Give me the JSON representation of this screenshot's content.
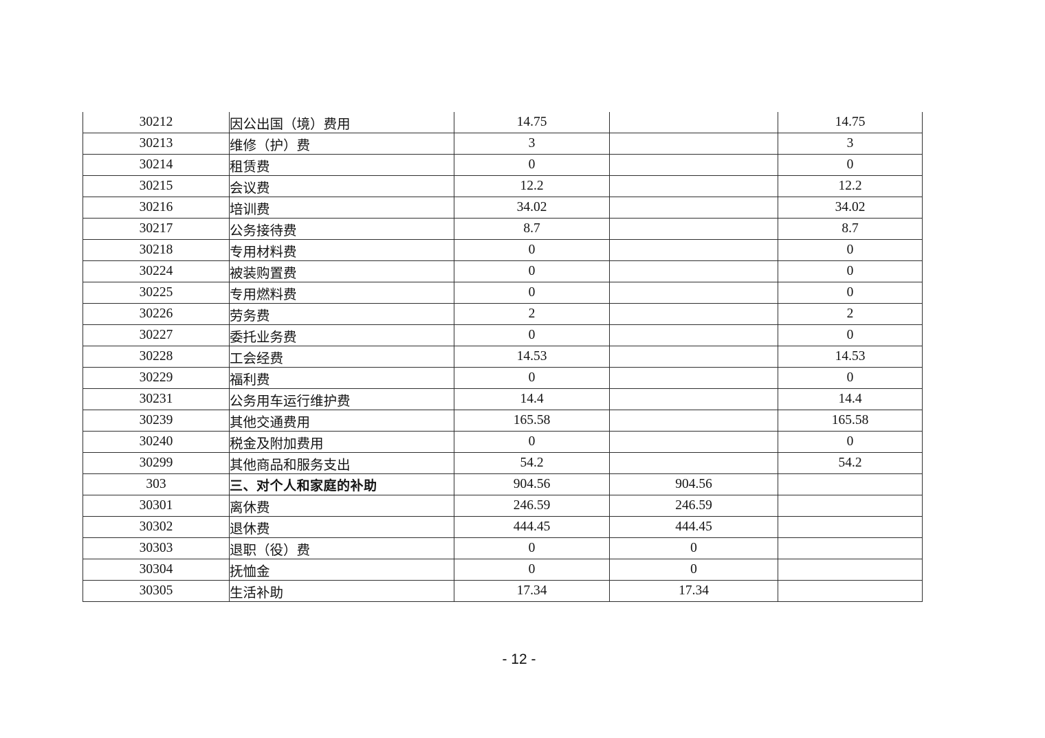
{
  "page": {
    "number_label": "- 12 -"
  },
  "colors": {
    "background": "#ffffff",
    "border": "#2e2e2e",
    "text": "#141414"
  },
  "table": {
    "columns": [
      "code",
      "label",
      "value1",
      "value2",
      "value3"
    ],
    "rows": [
      {
        "code": "30212",
        "label": "因公出国（境）费用",
        "value1": "14.75",
        "value2": "",
        "value3": "14.75",
        "bold": false
      },
      {
        "code": "30213",
        "label": "维修（护）费",
        "value1": "3",
        "value2": "",
        "value3": "3",
        "bold": false
      },
      {
        "code": "30214",
        "label": "租赁费",
        "value1": "0",
        "value2": "",
        "value3": "0",
        "bold": false
      },
      {
        "code": "30215",
        "label": "会议费",
        "value1": "12.2",
        "value2": "",
        "value3": "12.2",
        "bold": false
      },
      {
        "code": "30216",
        "label": "培训费",
        "value1": "34.02",
        "value2": "",
        "value3": "34.02",
        "bold": false
      },
      {
        "code": "30217",
        "label": "公务接待费",
        "value1": "8.7",
        "value2": "",
        "value3": "8.7",
        "bold": false
      },
      {
        "code": "30218",
        "label": "专用材料费",
        "value1": "0",
        "value2": "",
        "value3": "0",
        "bold": false
      },
      {
        "code": "30224",
        "label": "被装购置费",
        "value1": "0",
        "value2": "",
        "value3": "0",
        "bold": false
      },
      {
        "code": "30225",
        "label": "专用燃料费",
        "value1": "0",
        "value2": "",
        "value3": "0",
        "bold": false
      },
      {
        "code": "30226",
        "label": "劳务费",
        "value1": "2",
        "value2": "",
        "value3": "2",
        "bold": false
      },
      {
        "code": "30227",
        "label": "委托业务费",
        "value1": "0",
        "value2": "",
        "value3": "0",
        "bold": false
      },
      {
        "code": "30228",
        "label": "工会经费",
        "value1": "14.53",
        "value2": "",
        "value3": "14.53",
        "bold": false
      },
      {
        "code": "30229",
        "label": "福利费",
        "value1": "0",
        "value2": "",
        "value3": "0",
        "bold": false
      },
      {
        "code": "30231",
        "label": "公务用车运行维护费",
        "value1": "14.4",
        "value2": "",
        "value3": "14.4",
        "bold": false
      },
      {
        "code": "30239",
        "label": "其他交通费用",
        "value1": "165.58",
        "value2": "",
        "value3": "165.58",
        "bold": false
      },
      {
        "code": "30240",
        "label": "税金及附加费用",
        "value1": "0",
        "value2": "",
        "value3": "0",
        "bold": false
      },
      {
        "code": "30299",
        "label": "其他商品和服务支出",
        "value1": "54.2",
        "value2": "",
        "value3": "54.2",
        "bold": false
      },
      {
        "code": "303",
        "label": "三、对个人和家庭的补助",
        "value1": "904.56",
        "value2": "904.56",
        "value3": "",
        "bold": true
      },
      {
        "code": "30301",
        "label": "离休费",
        "value1": "246.59",
        "value2": "246.59",
        "value3": "",
        "bold": false
      },
      {
        "code": "30302",
        "label": "退休费",
        "value1": "444.45",
        "value2": "444.45",
        "value3": "",
        "bold": false
      },
      {
        "code": "30303",
        "label": "退职（役）费",
        "value1": "0",
        "value2": "0",
        "value3": "",
        "bold": false
      },
      {
        "code": "30304",
        "label": "抚恤金",
        "value1": "0",
        "value2": "0",
        "value3": "",
        "bold": false
      },
      {
        "code": "30305",
        "label": "生活补助",
        "value1": "17.34",
        "value2": "17.34",
        "value3": "",
        "bold": false
      }
    ]
  }
}
